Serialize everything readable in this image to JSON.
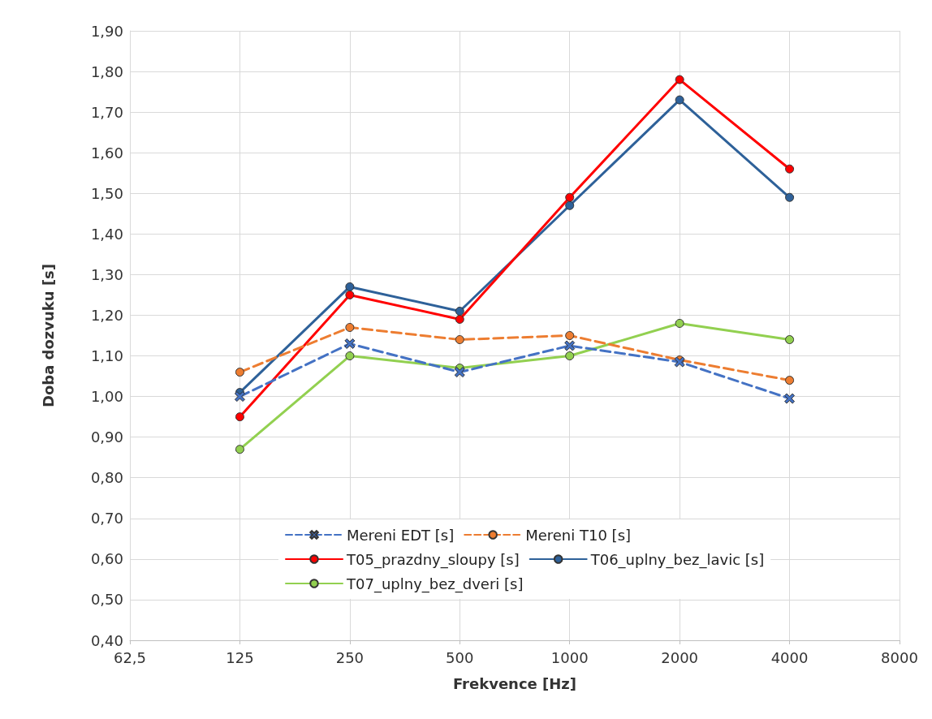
{
  "chart_data": {
    "type": "line",
    "xlabel": "Frekvence [Hz]",
    "ylabel": "Doba dozvuku [s]",
    "log": "x",
    "x": [
      125,
      250,
      500,
      1000,
      2000,
      4000
    ],
    "xlim": [
      62.5,
      8000
    ],
    "xticks": [
      {
        "value": 62.5,
        "label": "62,5"
      },
      125,
      250,
      500,
      1000,
      2000,
      4000,
      8000
    ],
    "ylim": [
      0.4,
      1.9
    ],
    "yticks": [
      {
        "value": 0.4,
        "label": "0,40"
      },
      {
        "value": 0.5,
        "label": "0,50"
      },
      {
        "value": 0.6,
        "label": "0,60"
      },
      {
        "value": 0.7,
        "label": "0,70"
      },
      {
        "value": 0.8,
        "label": "0,80"
      },
      {
        "value": 0.9,
        "label": "0,90"
      },
      {
        "value": 1.0,
        "label": "1,00"
      },
      {
        "value": 1.1,
        "label": "1,10"
      },
      {
        "value": 1.2,
        "label": "1,20"
      },
      {
        "value": 1.3,
        "label": "1,30"
      },
      {
        "value": 1.4,
        "label": "1,40"
      },
      {
        "value": 1.5,
        "label": "1,50"
      },
      {
        "value": 1.6,
        "label": "1,60"
      },
      {
        "value": 1.7,
        "label": "1,70"
      },
      {
        "value": 1.8,
        "label": "1,80"
      },
      {
        "value": 1.9,
        "label": "1,90"
      }
    ],
    "grid": true,
    "legend": "bottom",
    "series": [
      {
        "name": "Mereni EDT [s]",
        "color": "#4472c4",
        "marker": "cross",
        "line_style": "dashed",
        "values": [
          1.0,
          1.13,
          1.06,
          1.125,
          1.085,
          0.995
        ]
      },
      {
        "name": "Mereni T10 [s]",
        "color": "#ed7d31",
        "marker": "circle",
        "line_style": "dashed",
        "values": [
          1.06,
          1.17,
          1.14,
          1.15,
          1.09,
          1.04
        ]
      },
      {
        "name": "T05_prazdny_sloupy [s]",
        "color": "#ff0000",
        "marker": "circle",
        "line_style": "solid",
        "values": [
          0.95,
          1.25,
          1.19,
          1.49,
          1.78,
          1.56
        ]
      },
      {
        "name": "T06_uplny_bez_lavic [s]",
        "color": "#2e6199",
        "marker": "circle",
        "line_style": "solid",
        "values": [
          1.01,
          1.27,
          1.21,
          1.47,
          1.73,
          1.49
        ]
      },
      {
        "name": "T07_uplny_bez_dveri [s]",
        "color": "#92d050",
        "marker": "circle",
        "line_style": "solid",
        "values": [
          0.87,
          1.1,
          1.07,
          1.1,
          1.18,
          1.14
        ]
      }
    ]
  }
}
